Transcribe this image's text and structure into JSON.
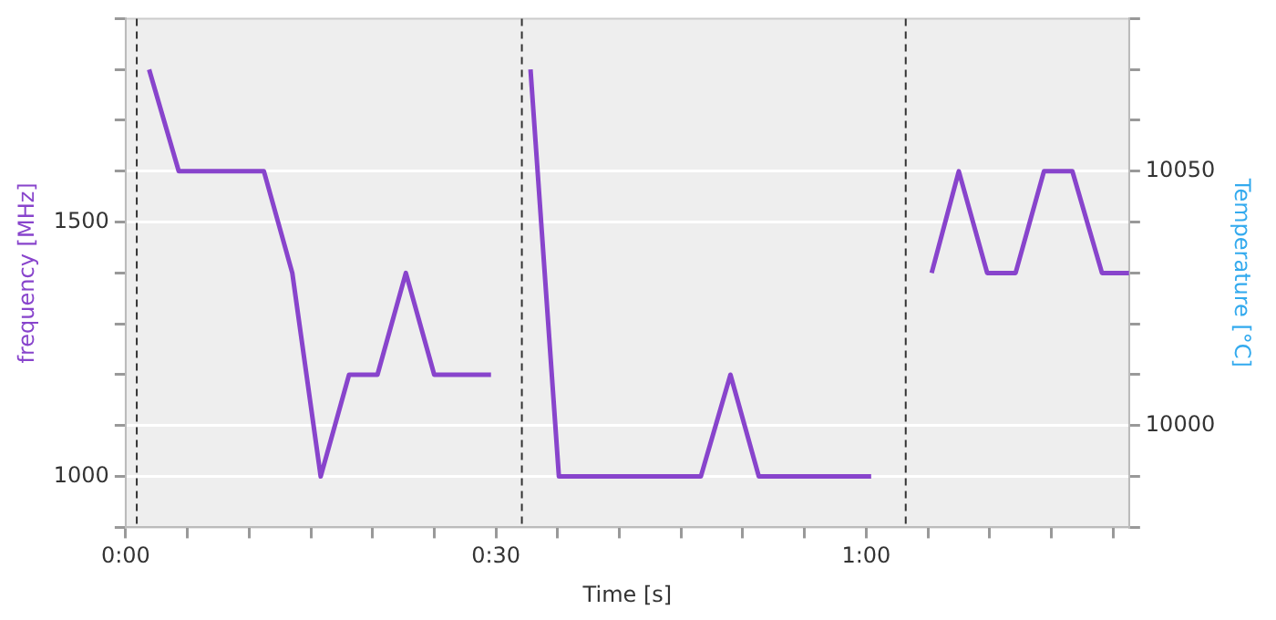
{
  "chart_data": {
    "type": "line",
    "xlabel": "Time [s]",
    "ylabel": "frequency [MHz]",
    "y2label": "Temperature [°C]",
    "xlim": [
      0,
      81.3
    ],
    "ylim": [
      900,
      1900
    ],
    "y2lim": [
      9980,
      10080
    ],
    "xticks": [
      {
        "value": 0,
        "label": "0:00"
      },
      {
        "value": 5,
        "label": null
      },
      {
        "value": 10,
        "label": null
      },
      {
        "value": 15,
        "label": null
      },
      {
        "value": 20,
        "label": null
      },
      {
        "value": 25,
        "label": null
      },
      {
        "value": 30,
        "label": "0:30"
      },
      {
        "value": 35,
        "label": null
      },
      {
        "value": 40,
        "label": null
      },
      {
        "value": 45,
        "label": null
      },
      {
        "value": 50,
        "label": null
      },
      {
        "value": 55,
        "label": null
      },
      {
        "value": 60,
        "label": "1:00"
      },
      {
        "value": 65,
        "label": null
      },
      {
        "value": 70,
        "label": null
      },
      {
        "value": 75,
        "label": null
      },
      {
        "value": 80,
        "label": null
      }
    ],
    "yticks": [
      {
        "value": 900,
        "label": null
      },
      1000,
      {
        "value": 1100,
        "label": null
      },
      {
        "value": 1200,
        "label": null
      },
      {
        "value": 1300,
        "label": null
      },
      {
        "value": 1400,
        "label": null
      },
      1500,
      {
        "value": 1600,
        "label": null
      },
      {
        "value": 1700,
        "label": null
      },
      {
        "value": 1800,
        "label": null
      },
      {
        "value": 1900,
        "label": null
      }
    ],
    "y2ticks": [
      {
        "value": 9980,
        "label": null
      },
      {
        "value": 9990,
        "label": null
      },
      10000,
      {
        "value": 10010,
        "label": null
      },
      {
        "value": 10020,
        "label": null
      },
      {
        "value": 10030,
        "label": null
      },
      {
        "value": 10040,
        "label": null
      },
      10050,
      {
        "value": 10060,
        "label": null
      },
      {
        "value": 10070,
        "label": null
      },
      {
        "value": 10080,
        "label": null
      }
    ],
    "grid": "y",
    "legend": false,
    "marker": "none",
    "line_style": "solid",
    "ref_lines": [
      {
        "axis": "x",
        "value": 0.9,
        "color": "#333333",
        "line_style": "dashed"
      },
      {
        "axis": "x",
        "value": 32.1,
        "color": "#333333",
        "line_style": "dashed"
      },
      {
        "axis": "x",
        "value": 63.2,
        "color": "#333333",
        "line_style": "dashed"
      }
    ],
    "series": [
      {
        "color": "#8844cc",
        "x": [
          1.9,
          4.3,
          11.2,
          13.5,
          15.8,
          18.1,
          20.4,
          22.7,
          25.0,
          29.6,
          31,
          32.8,
          35.1,
          46.6,
          49.0,
          51.3,
          60.4,
          62,
          65.3,
          67.5,
          69.8,
          72.1,
          74.4,
          76.7,
          79.1,
          81.3
        ],
        "values": [
          1800,
          1600,
          1600,
          1400,
          1000,
          1200,
          1200,
          1400,
          1200,
          1200,
          null,
          1800,
          1000,
          1000,
          1200,
          1000,
          1000,
          null,
          1400,
          1600,
          1400,
          1400,
          1600,
          1600,
          1400,
          1400
        ]
      }
    ]
  }
}
